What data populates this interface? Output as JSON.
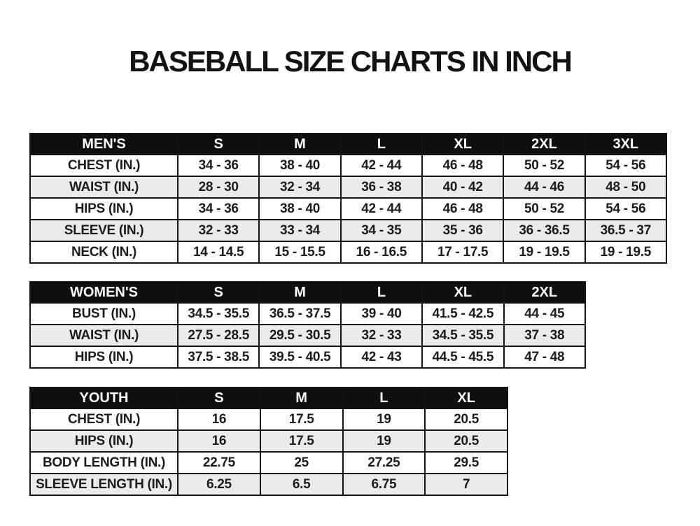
{
  "title": "BASEBALL SIZE CHARTS IN INCH",
  "colors": {
    "page_bg": "#ffffff",
    "title_text": "#121212",
    "header_bg": "#0f0f0f",
    "header_text": "#ffffff",
    "row_alt_bg": "#ebebeb",
    "border": "#141414",
    "text": "#1c1c1c"
  },
  "tables": [
    {
      "id": "mens",
      "header": [
        "MEN'S",
        "S",
        "M",
        "L",
        "XL",
        "2XL",
        "3XL"
      ],
      "rows": [
        {
          "label": "CHEST (IN.)",
          "values": [
            "34 - 36",
            "38 - 40",
            "42 - 44",
            "46 - 48",
            "50 - 52",
            "54 - 56"
          ]
        },
        {
          "label": "WAIST (IN.)",
          "values": [
            "28 - 30",
            "32 - 34",
            "36 - 38",
            "40 - 42",
            "44 - 46",
            "48 - 50"
          ]
        },
        {
          "label": "HIPS (IN.)",
          "values": [
            "34 - 36",
            "38 - 40",
            "42 - 44",
            "46 - 48",
            "50 - 52",
            "54 - 56"
          ]
        },
        {
          "label": "SLEEVE (IN.)",
          "values": [
            "32 - 33",
            "33 - 34",
            "34 - 35",
            "35 - 36",
            "36 - 36.5",
            "36.5 - 37"
          ]
        },
        {
          "label": "NECK (IN.)",
          "values": [
            "14 - 14.5",
            "15 - 15.5",
            "16 - 16.5",
            "17 - 17.5",
            "19 - 19.5",
            "19 - 19.5"
          ]
        }
      ]
    },
    {
      "id": "womens",
      "header": [
        "WOMEN'S",
        "S",
        "M",
        "L",
        "XL",
        "2XL"
      ],
      "rows": [
        {
          "label": "BUST (IN.)",
          "values": [
            "34.5 - 35.5",
            "36.5 - 37.5",
            "39 - 40",
            "41.5 - 42.5",
            "44 - 45"
          ]
        },
        {
          "label": "WAIST (IN.)",
          "values": [
            "27.5 - 28.5",
            "29.5 - 30.5",
            "32 - 33",
            "34.5 - 35.5",
            "37 - 38"
          ]
        },
        {
          "label": "HIPS (IN.)",
          "values": [
            "37.5 - 38.5",
            "39.5 - 40.5",
            "42 - 43",
            "44.5 - 45.5",
            "47 - 48"
          ]
        }
      ]
    },
    {
      "id": "youth",
      "header": [
        "YOUTH",
        "S",
        "M",
        "L",
        "XL"
      ],
      "rows": [
        {
          "label": "CHEST (IN.)",
          "values": [
            "16",
            "17.5",
            "19",
            "20.5"
          ]
        },
        {
          "label": "HIPS (IN.)",
          "values": [
            "16",
            "17.5",
            "19",
            "20.5"
          ]
        },
        {
          "label": "BODY LENGTH (IN.)",
          "values": [
            "22.75",
            "25",
            "27.25",
            "29.5"
          ]
        },
        {
          "label": "SLEEVE LENGTH (IN.)",
          "values": [
            "6.25",
            "6.5",
            "6.75",
            "7"
          ]
        }
      ]
    }
  ]
}
